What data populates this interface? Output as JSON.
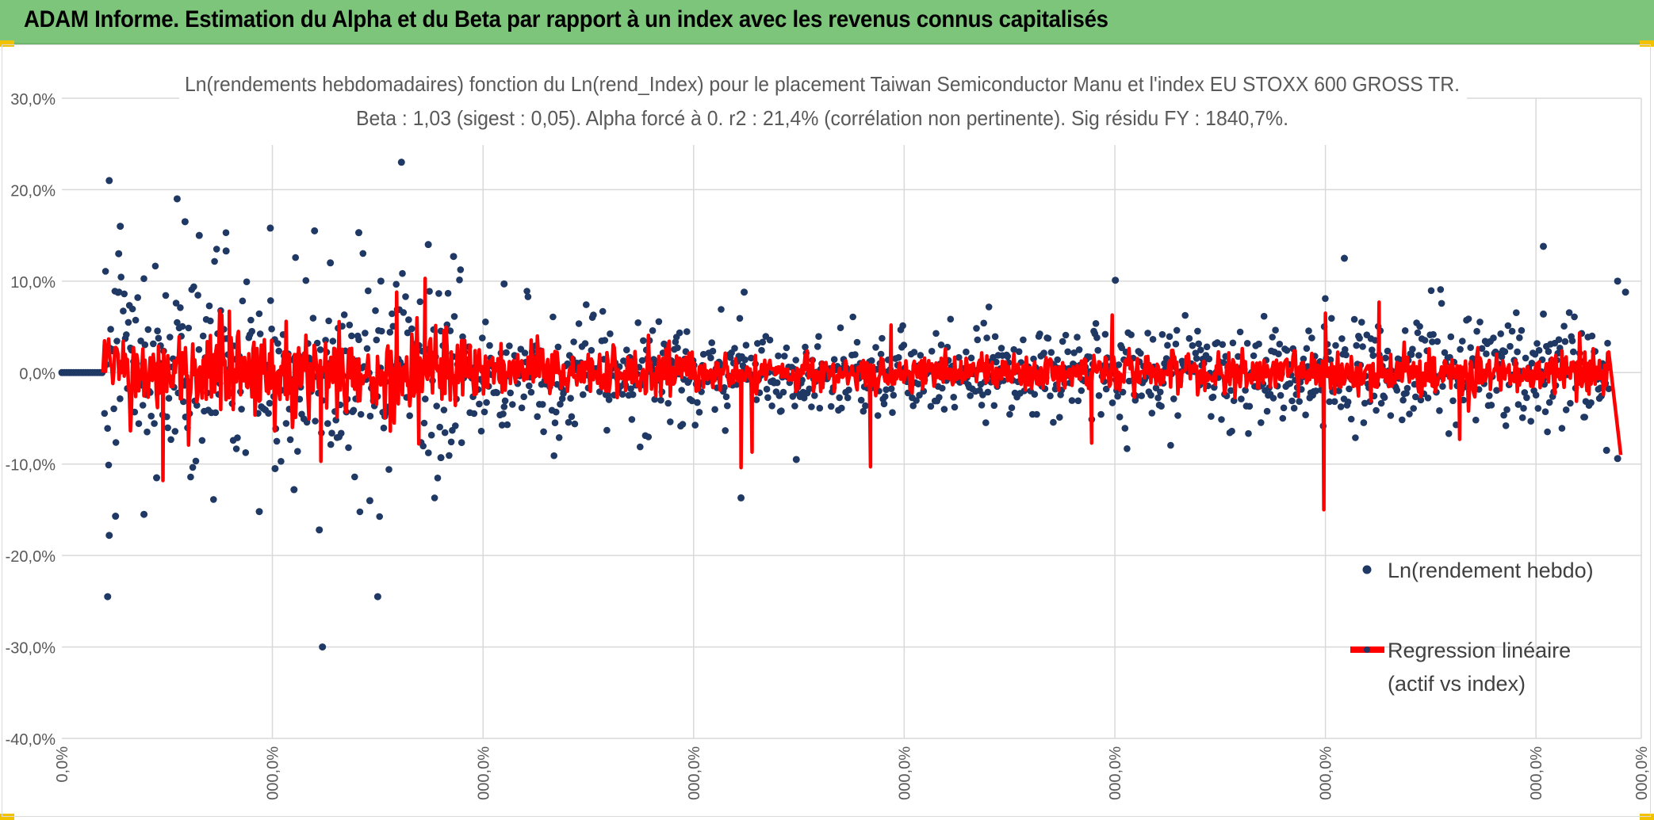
{
  "banner": {
    "title": "ADAM Informe. Estimation du Alpha et du Beta par rapport à un index avec les revenus connus capitalisés",
    "color": "#7dc57a"
  },
  "chart_data": {
    "type": "scatter",
    "title": "Ln(rendements hebdomadaires) fonction du Ln(rend_Index) pour le placement Taiwan Semiconductor Manu et l'index EU STOXX 600 GROSS TR.",
    "subtitle": "Beta : 1,03 (sigest : 0,05). Alpha forcé à 0. r2 : 21,4% (corrélation non pertinente). Sig résidu FY : 1840,7%.",
    "xlabel": "",
    "ylabel": "",
    "ylim": [
      -0.4,
      0.3
    ],
    "yticks": [
      {
        "value": 0.3,
        "label": "30,0%"
      },
      {
        "value": 0.2,
        "label": "20,0%"
      },
      {
        "value": 0.1,
        "label": "10,0%"
      },
      {
        "value": 0.0,
        "label": "0,0%"
      },
      {
        "value": -0.1,
        "label": "-10,0%"
      },
      {
        "value": -0.2,
        "label": "-20,0%"
      },
      {
        "value": -0.3,
        "label": "-30,0%"
      },
      {
        "value": -0.4,
        "label": "-40,0%"
      }
    ],
    "xlim": [
      0,
      1
    ],
    "xticks": [
      {
        "value": 0.0,
        "label": "0,0%"
      },
      {
        "value": 0.1333,
        "label": "000,0%"
      },
      {
        "value": 0.2667,
        "label": "000,0%"
      },
      {
        "value": 0.4,
        "label": "000,0%"
      },
      {
        "value": 0.5333,
        "label": "000,0%"
      },
      {
        "value": 0.6667,
        "label": "000,0%"
      },
      {
        "value": 0.8,
        "label": "000,0%"
      },
      {
        "value": 0.9333,
        "label": "000,0%"
      },
      {
        "value": 1.0,
        "label": "000,0%"
      }
    ],
    "grid": true,
    "legend": "right",
    "series": [
      {
        "name": "Ln(rendement hebdo)",
        "kind": "markers",
        "color": "#1f3864"
      },
      {
        "name": "Regression linéaire (actif vs index)",
        "kind": "line",
        "color": "#ff0000"
      }
    ],
    "outliers": [
      {
        "x": 0.03,
        "y": 0.21
      },
      {
        "x": 0.029,
        "y": -0.245
      },
      {
        "x": 0.03,
        "y": -0.178
      },
      {
        "x": 0.034,
        "y": -0.157
      },
      {
        "x": 0.037,
        "y": 0.16
      },
      {
        "x": 0.036,
        "y": 0.13
      },
      {
        "x": 0.052,
        "y": -0.155
      },
      {
        "x": 0.06,
        "y": -0.115
      },
      {
        "x": 0.073,
        "y": 0.19
      },
      {
        "x": 0.078,
        "y": 0.165
      },
      {
        "x": 0.087,
        "y": 0.15
      },
      {
        "x": 0.104,
        "y": 0.133
      },
      {
        "x": 0.125,
        "y": -0.152
      },
      {
        "x": 0.132,
        "y": 0.158
      },
      {
        "x": 0.135,
        "y": -0.105
      },
      {
        "x": 0.147,
        "y": -0.128
      },
      {
        "x": 0.16,
        "y": 0.155
      },
      {
        "x": 0.163,
        "y": -0.172
      },
      {
        "x": 0.17,
        "y": 0.12
      },
      {
        "x": 0.165,
        "y": -0.3
      },
      {
        "x": 0.188,
        "y": 0.153
      },
      {
        "x": 0.195,
        "y": -0.14
      },
      {
        "x": 0.2,
        "y": -0.245
      },
      {
        "x": 0.202,
        "y": 0.1
      },
      {
        "x": 0.215,
        "y": 0.23
      },
      {
        "x": 0.232,
        "y": 0.14
      },
      {
        "x": 0.24,
        "y": -0.093
      },
      {
        "x": 0.248,
        "y": 0.127
      },
      {
        "x": 0.28,
        "y": 0.097
      },
      {
        "x": 0.43,
        "y": -0.137
      },
      {
        "x": 0.432,
        "y": 0.088
      },
      {
        "x": 0.465,
        "y": -0.095
      },
      {
        "x": 0.667,
        "y": 0.101
      },
      {
        "x": 0.812,
        "y": 0.125
      },
      {
        "x": 0.938,
        "y": 0.138
      },
      {
        "x": 0.938,
        "y": 0.064
      },
      {
        "x": 0.985,
        "y": 0.1
      },
      {
        "x": 0.985,
        "y": -0.094
      },
      {
        "x": 0.978,
        "y": -0.085
      },
      {
        "x": 0.99,
        "y": 0.088
      }
    ],
    "regression_spikes": [
      {
        "x": 0.064,
        "y": -0.118
      },
      {
        "x": 0.106,
        "y": 0.067
      },
      {
        "x": 0.164,
        "y": -0.097
      },
      {
        "x": 0.208,
        "y": -0.064
      },
      {
        "x": 0.212,
        "y": 0.088
      },
      {
        "x": 0.226,
        "y": -0.078
      },
      {
        "x": 0.23,
        "y": 0.103
      },
      {
        "x": 0.43,
        "y": -0.104
      },
      {
        "x": 0.437,
        "y": -0.087
      },
      {
        "x": 0.512,
        "y": -0.103
      },
      {
        "x": 0.525,
        "y": 0.052
      },
      {
        "x": 0.652,
        "y": -0.077
      },
      {
        "x": 0.665,
        "y": 0.063
      },
      {
        "x": 0.799,
        "y": -0.15
      },
      {
        "x": 0.8,
        "y": 0.065
      },
      {
        "x": 0.834,
        "y": 0.077
      },
      {
        "x": 0.885,
        "y": -0.073
      },
      {
        "x": 0.987,
        "y": -0.09
      }
    ]
  }
}
